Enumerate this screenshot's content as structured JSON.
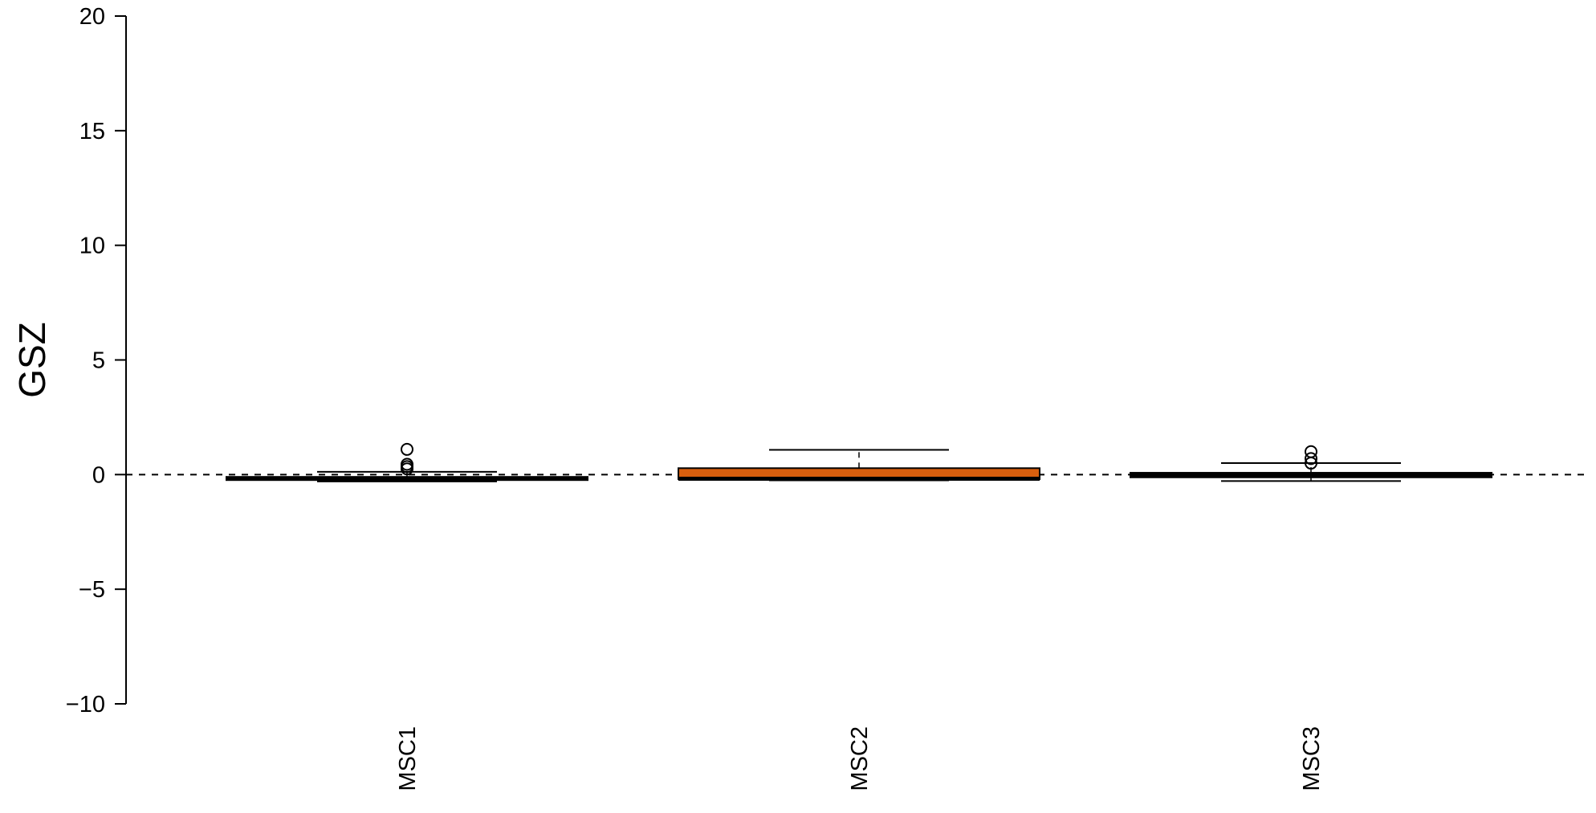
{
  "chart_data": {
    "type": "box",
    "ylabel": "GSZ",
    "ylim": [
      -10,
      20
    ],
    "yticks": [
      -10,
      -5,
      0,
      5,
      10,
      15,
      20
    ],
    "y_tick_labels": [
      "−10",
      "−5",
      "0",
      "5",
      "10",
      "15",
      "20"
    ],
    "reference_line": 0,
    "grid": false,
    "categories": [
      "MSC1",
      "MSC2",
      "MSC3"
    ],
    "boxes": [
      {
        "name": "MSC1",
        "whisker_low": -0.3,
        "q1": -0.24,
        "median": -0.18,
        "q3": -0.1,
        "whisker_high": 0.12,
        "outliers": [
          0.25,
          0.35,
          0.45,
          1.1
        ],
        "fill": "#222222"
      },
      {
        "name": "MSC2",
        "whisker_low": -0.25,
        "q1": -0.2,
        "median": -0.18,
        "q3": 0.28,
        "whisker_high": 1.08,
        "outliers": [],
        "fill": "#D95F0E"
      },
      {
        "name": "MSC3",
        "whisker_low": -0.28,
        "q1": -0.12,
        "median": 0.0,
        "q3": 0.08,
        "whisker_high": 0.5,
        "outliers": [
          0.5,
          0.7,
          1.0
        ],
        "fill": "#222222"
      }
    ]
  }
}
